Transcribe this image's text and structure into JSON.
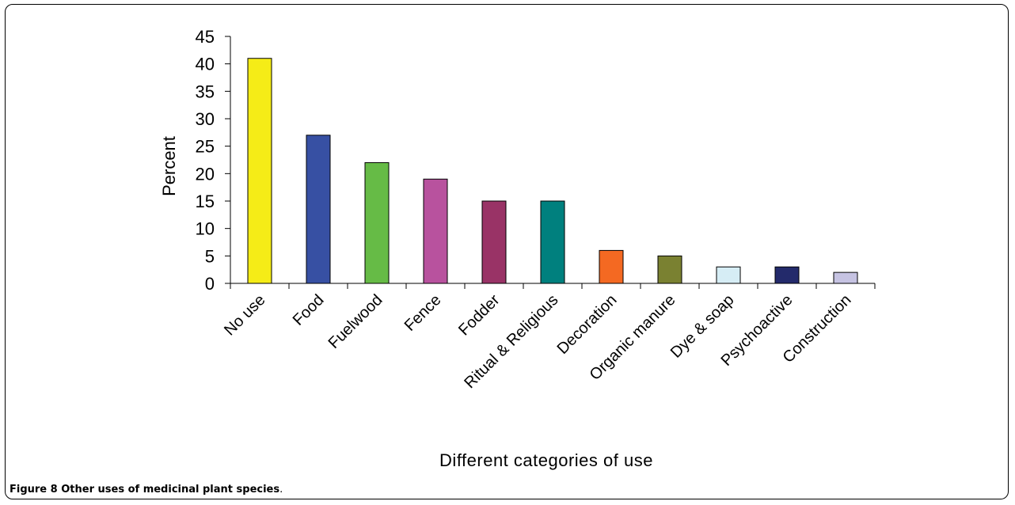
{
  "caption": {
    "label": "Figure 8",
    "title": "Other uses of medicinal plant species",
    "period": "."
  },
  "chart_data": {
    "type": "bar",
    "categories": [
      "No use",
      "Food",
      "Fuelwood",
      "Fence",
      "Fodder",
      "Ritual & Religious",
      "Decoration",
      "Organic manure",
      "Dye & soap",
      "Psychoactive",
      "Construction"
    ],
    "values": [
      41,
      27,
      22,
      19,
      15,
      15,
      6,
      5,
      3,
      3,
      2
    ],
    "colors": [
      "#f5ec17",
      "#3750a3",
      "#66bb46",
      "#b8529e",
      "#993366",
      "#00807e",
      "#f46922",
      "#7a8131",
      "#d6edf5",
      "#232a6b",
      "#c6c3e2"
    ],
    "xlabel": "Different categories of use",
    "ylabel": "Percent",
    "ylim": [
      0,
      45
    ],
    "yticks": [
      0,
      5,
      10,
      15,
      20,
      25,
      30,
      35,
      40,
      45
    ],
    "grid": false,
    "legend": "none"
  }
}
